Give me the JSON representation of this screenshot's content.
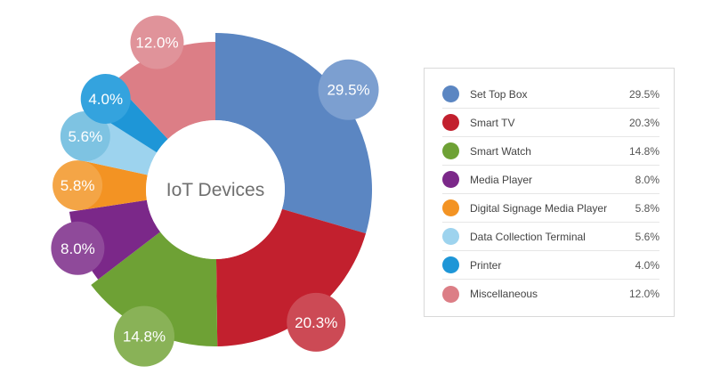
{
  "chart_data": {
    "type": "pie",
    "donut": true,
    "center_text": "IoT Devices",
    "categories": [
      "Set Top Box",
      "Smart TV",
      "Smart Watch",
      "Media Player",
      "Digital Signage Media Player",
      "Data Collection Terminal",
      "Printer",
      "Miscellaneous"
    ],
    "values": [
      29.5,
      20.3,
      14.8,
      8.0,
      5.8,
      5.6,
      4.0,
      12.0
    ],
    "labels": [
      "29.5%",
      "20.3%",
      "14.8%",
      "8.0%",
      "5.8%",
      "5.6%",
      "4.0%",
      "12.0%"
    ],
    "colors": [
      "#5b86c2",
      "#c2202e",
      "#6ea135",
      "#7b2889",
      "#f39323",
      "#9dd3ee",
      "#1e96d7",
      "#dc7e86"
    ],
    "bubble_colors": [
      "#7c9fd0",
      "#cc4a55",
      "#89b257",
      "#8f4a9a",
      "#f4a546",
      "#7ec3e2",
      "#34a3de",
      "#e0939a"
    ],
    "legend_position": "right"
  }
}
